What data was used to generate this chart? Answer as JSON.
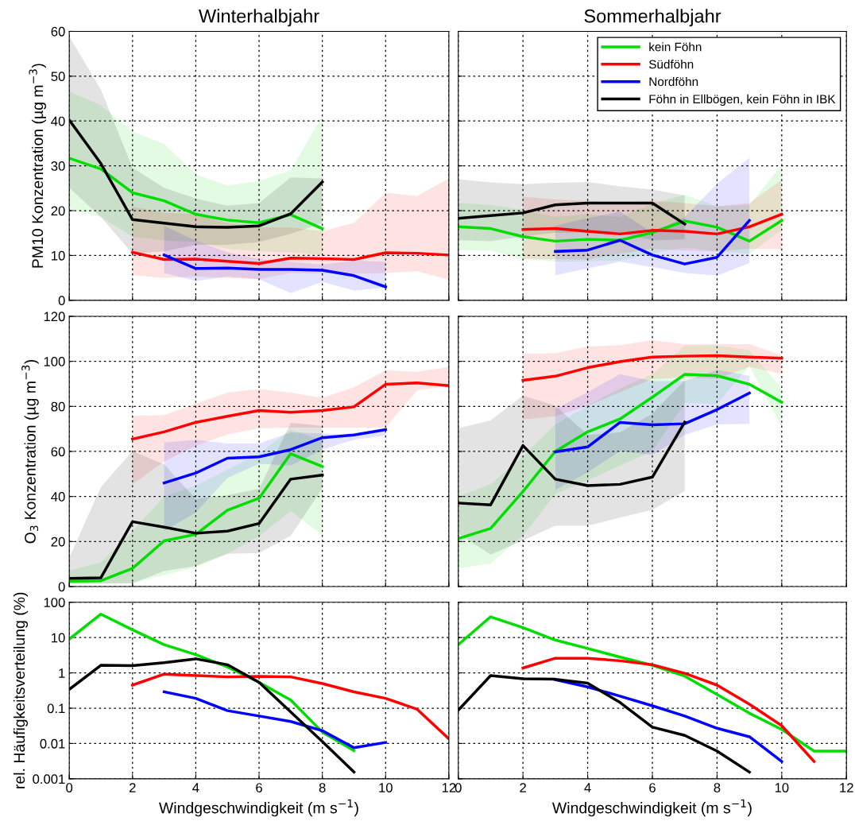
{
  "chart_data": [
    {
      "type": "line",
      "title": "Winterhalbjahr",
      "ylabel": "PM10 Konzentration (µg m$^{−3}$)",
      "xlim": [
        0,
        12
      ],
      "xticks": [
        0,
        2,
        4,
        6,
        8,
        10,
        12
      ],
      "ylim": [
        0,
        60
      ],
      "yticks": [
        0,
        10,
        20,
        30,
        40,
        50,
        60
      ],
      "grid": true,
      "tick_labels": "y",
      "line_style": "solid",
      "series": [
        {
          "color": "#00dd00",
          "x": [
            0,
            1,
            2,
            3,
            4,
            5,
            6,
            7,
            8
          ],
          "values": [
            31.7,
            29.3,
            24.0,
            22.2,
            19.2,
            17.9,
            17.3,
            19.1,
            16.0
          ],
          "upper": [
            46.6,
            43.5,
            37.6,
            34.9,
            28.1,
            25.6,
            26.6,
            29.0,
            41.1
          ],
          "lower": [
            20.4,
            18.6,
            14.2,
            13.3,
            13.0,
            11.5,
            10.9,
            10.7,
            10.1
          ]
        },
        {
          "color": "#ff0000",
          "x": [
            2,
            3,
            4,
            5,
            6,
            7,
            8,
            9,
            10,
            11,
            12
          ],
          "values": [
            10.7,
            9.1,
            9.2,
            8.7,
            8.2,
            9.4,
            9.3,
            9.1,
            10.6,
            10.5,
            10.1
          ],
          "upper": [
            20.9,
            19.5,
            19.2,
            17.2,
            16.3,
            16.3,
            15.4,
            17.3,
            24.0,
            23.3,
            27.2
          ],
          "lower": [
            5.6,
            5.0,
            5.3,
            5.0,
            4.7,
            6.1,
            6.0,
            5.9,
            6.1,
            6.5,
            4.6
          ]
        },
        {
          "color": "#0000ff",
          "x": [
            3,
            4,
            5,
            6,
            7,
            8,
            9,
            10
          ],
          "values": [
            10.1,
            7.1,
            7.2,
            6.9,
            6.9,
            6.7,
            5.5,
            3.0
          ],
          "upper": [
            16.6,
            13.3,
            10.7,
            9.2,
            8.6,
            8.0,
            8.9,
            8.6
          ],
          "lower": [
            6.1,
            4.3,
            5.3,
            4.7,
            1.6,
            4.1,
            2.2,
            2.8
          ]
        },
        {
          "color": "#000000",
          "x": [
            0,
            1,
            2,
            3,
            4,
            5,
            6,
            7,
            8
          ],
          "values": [
            40.2,
            30.5,
            18.0,
            17.2,
            16.4,
            16.3,
            16.6,
            19.3,
            26.4
          ],
          "upper": [
            58.9,
            47.0,
            29.6,
            25.1,
            22.7,
            21.1,
            21.7,
            27.4,
            27.2
          ],
          "lower": [
            25.1,
            18.6,
            10.4,
            10.9,
            12.4,
            12.4,
            13.0,
            14.8,
            17.2
          ]
        }
      ]
    },
    {
      "type": "line",
      "title": "Sommerhalbjahr",
      "xlim": [
        0,
        12
      ],
      "xticks": [
        0,
        2,
        4,
        6,
        8,
        10,
        12
      ],
      "ylim": [
        0,
        60
      ],
      "yticks": [
        0,
        10,
        20,
        30,
        40,
        50,
        60
      ],
      "grid": true,
      "tick_labels": false,
      "legend": "top right",
      "line_style": "solid",
      "series": [
        {
          "name": "kein Föhn",
          "color": "#00dd00",
          "x": [
            0,
            1,
            2,
            3,
            4,
            5,
            6,
            7,
            8,
            9,
            10
          ],
          "values": [
            16.4,
            16.0,
            14.2,
            13.2,
            13.6,
            13.4,
            15.1,
            17.7,
            16.3,
            13.2,
            17.8
          ],
          "upper": [
            21.7,
            21.3,
            20.2,
            18.6,
            19.2,
            18.6,
            21.6,
            23.5,
            21.0,
            21.3,
            30.2
          ],
          "lower": [
            11.2,
            11.1,
            9.3,
            8.6,
            8.7,
            8.9,
            10.4,
            11.8,
            10.9,
            10.4,
            15.7
          ]
        },
        {
          "name": "Südföhn",
          "color": "#ff0000",
          "x": [
            2,
            3,
            4,
            5,
            6,
            7,
            8,
            9,
            10
          ],
          "values": [
            15.8,
            16.0,
            15.4,
            14.8,
            15.6,
            15.4,
            14.8,
            16.4,
            19.2
          ],
          "upper": [
            23.1,
            22.5,
            22.2,
            21.9,
            22.2,
            21.7,
            21.0,
            21.7,
            26.9
          ],
          "lower": [
            9.3,
            9.2,
            9.1,
            10.4,
            11.5,
            11.1,
            10.9,
            11.5,
            11.5
          ]
        },
        {
          "name": "Nordföhn",
          "color": "#0000ff",
          "x": [
            3,
            4,
            5,
            6,
            7,
            8,
            9
          ],
          "values": [
            10.9,
            11.2,
            13.4,
            10.1,
            8.1,
            9.6,
            17.8
          ],
          "upper": [
            16.7,
            18.3,
            19.8,
            15.1,
            18.6,
            26.0,
            31.8
          ],
          "lower": [
            5.6,
            7.1,
            8.6,
            7.4,
            6.1,
            5.5,
            8.3
          ]
        },
        {
          "name": "Föhn in Ellbögen, kein Föhn in IBK",
          "color": "#000000",
          "x": [
            0,
            1,
            2,
            3,
            4,
            5,
            6,
            7
          ],
          "values": [
            18.3,
            18.9,
            19.5,
            21.3,
            21.7,
            21.7,
            21.7,
            17.0
          ],
          "upper": [
            27.0,
            26.3,
            25.9,
            26.2,
            26.4,
            25.4,
            24.7,
            23.4
          ],
          "lower": [
            13.4,
            13.2,
            14.2,
            15.1,
            15.1,
            15.0,
            13.4,
            13.6
          ]
        }
      ]
    },
    {
      "type": "line",
      "ylabel": "O$_{3}$ Konzentration (µg m$^{−3}$)",
      "xlim": [
        0,
        12
      ],
      "xticks": [
        0,
        2,
        4,
        6,
        8,
        10,
        12
      ],
      "ylim": [
        0,
        120
      ],
      "yticks": [
        0,
        20,
        40,
        60,
        80,
        100,
        120
      ],
      "grid": true,
      "tick_labels": "y",
      "line_style": "solid",
      "series": [
        {
          "color": "#00dd00",
          "x": [
            0,
            1,
            2,
            3,
            4,
            5,
            6,
            7,
            8
          ],
          "values": [
            2.4,
            2.6,
            8.1,
            20.3,
            23.2,
            33.9,
            39.2,
            59.0,
            53.3
          ],
          "upper": [
            7.1,
            10.7,
            24.6,
            40.0,
            44.8,
            51.9,
            59.0,
            69.7,
            64.9
          ],
          "lower": [
            1.2,
            1.5,
            1.5,
            5.1,
            8.6,
            14.6,
            22.3,
            33.5,
            22.9
          ]
        },
        {
          "color": "#ff0000",
          "x": [
            2,
            3,
            4,
            5,
            6,
            7,
            8,
            9,
            10,
            11,
            12
          ],
          "values": [
            65.5,
            68.7,
            72.9,
            75.6,
            78.2,
            77.4,
            78.2,
            79.8,
            89.8,
            90.4,
            89.2
          ],
          "upper": [
            75.8,
            76.1,
            81.2,
            86.1,
            87.7,
            86.1,
            83.8,
            88.5,
            96.0,
            95.4,
            97.5
          ],
          "lower": [
            45.4,
            55.5,
            62.6,
            67.5,
            70.3,
            70.6,
            70.6,
            70.6,
            70.6,
            87.2,
            88.9
          ]
        },
        {
          "color": "#0000ff",
          "x": [
            3,
            4,
            5,
            6,
            7,
            8,
            9,
            10
          ],
          "values": [
            46.0,
            50.4,
            57.0,
            57.6,
            60.8,
            66.1,
            67.3,
            69.7
          ],
          "upper": [
            64.0,
            65.2,
            63.5,
            63.5,
            68.5,
            67.9,
            67.3,
            70.0
          ],
          "lower": [
            24.6,
            32.9,
            48.3,
            54.5,
            53.7,
            60.8,
            65.2,
            67.1
          ]
        },
        {
          "color": "#000000",
          "x": [
            0,
            1,
            2,
            3,
            4,
            5,
            6,
            7,
            8
          ],
          "values": [
            3.6,
            3.9,
            28.8,
            26.4,
            23.7,
            24.6,
            28.0,
            47.7,
            49.5
          ],
          "upper": [
            12.8,
            44.2,
            60.2,
            54.3,
            38.9,
            40.6,
            43.4,
            72.7,
            71.4
          ],
          "lower": [
            1.2,
            1.2,
            1.5,
            6.9,
            9.2,
            14.6,
            14.9,
            22.5,
            43.6
          ]
        }
      ]
    },
    {
      "type": "line",
      "xlim": [
        0,
        12
      ],
      "xticks": [
        0,
        2,
        4,
        6,
        8,
        10,
        12
      ],
      "ylim": [
        0,
        120
      ],
      "yticks": [
        0,
        20,
        40,
        60,
        80,
        100,
        120
      ],
      "grid": true,
      "tick_labels": false,
      "line_style": "solid",
      "series": [
        {
          "color": "#00dd00",
          "x": [
            0,
            1,
            2,
            3,
            4,
            5,
            6,
            7,
            8,
            9,
            10
          ],
          "values": [
            21.3,
            25.8,
            42.2,
            60.0,
            68.7,
            74.4,
            84.1,
            94.2,
            93.6,
            89.8,
            81.8
          ],
          "upper": [
            40.0,
            45.4,
            57.8,
            72.0,
            80.3,
            88.0,
            94.3,
            107.0,
            107.0,
            105.0,
            88.0
          ],
          "lower": [
            8.1,
            10.2,
            22.5,
            41.2,
            47.2,
            53.7,
            60.2,
            81.5,
            81.0,
            98.0,
            70.9
          ]
        },
        {
          "color": "#ff0000",
          "x": [
            2,
            3,
            4,
            5,
            6,
            7,
            8,
            9,
            10
          ],
          "values": [
            91.6,
            93.4,
            97.2,
            99.9,
            101.9,
            102.3,
            102.5,
            101.9,
            101.4
          ],
          "upper": [
            103.3,
            103.7,
            106.6,
            107.2,
            109.4,
            107.6,
            107.6,
            107.6,
            102.8
          ],
          "lower": [
            74.2,
            75.6,
            80.3,
            86.3,
            92.2,
            92.8,
            92.2,
            97.5,
            94.5
          ]
        },
        {
          "color": "#0000ff",
          "x": [
            3,
            4,
            5,
            6,
            7,
            8,
            9
          ],
          "values": [
            59.8,
            62.0,
            72.9,
            71.8,
            72.3,
            78.6,
            85.9
          ],
          "upper": [
            78.9,
            86.3,
            94.3,
            91.2,
            91.2,
            96.3,
            93.6
          ],
          "lower": [
            43.0,
            50.7,
            60.2,
            58.4,
            67.3,
            72.0,
            72.3
          ]
        },
        {
          "color": "#000000",
          "x": [
            0,
            1,
            2,
            3,
            4,
            5,
            6,
            7
          ],
          "values": [
            37.1,
            36.3,
            62.6,
            47.7,
            44.8,
            45.4,
            48.6,
            73.0
          ],
          "upper": [
            70.3,
            73.8,
            84.8,
            80.3,
            67.3,
            68.5,
            76.8,
            91.6
          ],
          "lower": [
            23.5,
            14.2,
            20.5,
            27.0,
            27.0,
            30.6,
            34.1,
            42.4
          ]
        }
      ]
    },
    {
      "type": "line",
      "ylabel": "rel. Häufigkeitsverteilung (%)",
      "xlabel": "Windgeschwindigkeit (m s$^{−1}$)",
      "log": "y",
      "xlim": [
        0,
        12
      ],
      "xticks": [
        0,
        2,
        4,
        6,
        8,
        10,
        12
      ],
      "ylim": [
        0.001,
        100
      ],
      "yticks": [
        0.001,
        0.01,
        0.1,
        1,
        10,
        100
      ],
      "grid": true,
      "line_style": "solid",
      "series": [
        {
          "color": "#00dd00",
          "x": [
            0,
            1,
            2,
            3,
            4,
            5,
            6,
            7,
            8,
            9
          ],
          "values": [
            9.0,
            46,
            16.6,
            6.3,
            3.3,
            1.47,
            0.54,
            0.17,
            0.021,
            0.0063
          ]
        },
        {
          "color": "#ff0000",
          "x": [
            2,
            3,
            4,
            5,
            6,
            7,
            8,
            9,
            10,
            11,
            12
          ],
          "values": [
            0.45,
            0.92,
            0.84,
            0.77,
            0.8,
            0.77,
            0.5,
            0.29,
            0.19,
            0.093,
            0.0135
          ]
        },
        {
          "color": "#0000ff",
          "x": [
            3,
            4,
            5,
            6,
            7,
            8,
            9,
            10
          ],
          "values": [
            0.29,
            0.19,
            0.085,
            0.06,
            0.042,
            0.023,
            0.0076,
            0.0107
          ]
        },
        {
          "color": "#000000",
          "x": [
            0,
            1,
            2,
            3,
            4,
            5,
            6,
            7,
            8,
            9
          ],
          "values": [
            0.34,
            1.64,
            1.61,
            1.95,
            2.5,
            1.7,
            0.54,
            0.078,
            0.0113,
            0.00155
          ]
        }
      ]
    },
    {
      "type": "line",
      "xlabel": "Windgeschwindigkeit (m s$^{−1}$)",
      "log": "y",
      "xlim": [
        0,
        12
      ],
      "xticks": [
        0,
        2,
        4,
        6,
        8,
        10,
        12
      ],
      "ylim": [
        0.001,
        100
      ],
      "yticks": [
        0.001,
        0.01,
        0.1,
        1,
        10,
        100
      ],
      "grid": true,
      "tick_labels": "x",
      "line_style": "solid",
      "series": [
        {
          "color": "#00dd00",
          "x": [
            0,
            1,
            2,
            3,
            4,
            5,
            6,
            7,
            8,
            9,
            10,
            11,
            12
          ],
          "values": [
            6.3,
            38.7,
            19.2,
            8.5,
            4.9,
            2.8,
            1.64,
            0.81,
            0.245,
            0.072,
            0.025,
            0.0061,
            0.0061
          ]
        },
        {
          "color": "#ff0000",
          "x": [
            2,
            3,
            4,
            5,
            6,
            7,
            8,
            9,
            10,
            11
          ],
          "values": [
            1.37,
            2.6,
            2.6,
            2.2,
            1.7,
            0.97,
            0.45,
            0.13,
            0.032,
            0.0031
          ]
        },
        {
          "color": "#0000ff",
          "x": [
            3,
            4,
            5,
            6,
            7,
            8,
            9,
            10
          ],
          "values": [
            0.64,
            0.4,
            0.22,
            0.117,
            0.06,
            0.027,
            0.0155,
            0.0031
          ]
        },
        {
          "color": "#000000",
          "x": [
            0,
            1,
            2,
            3,
            4,
            5,
            6,
            7,
            8,
            9
          ],
          "values": [
            0.088,
            0.84,
            0.68,
            0.66,
            0.51,
            0.145,
            0.029,
            0.017,
            0.0061,
            0.00155
          ]
        }
      ]
    }
  ]
}
